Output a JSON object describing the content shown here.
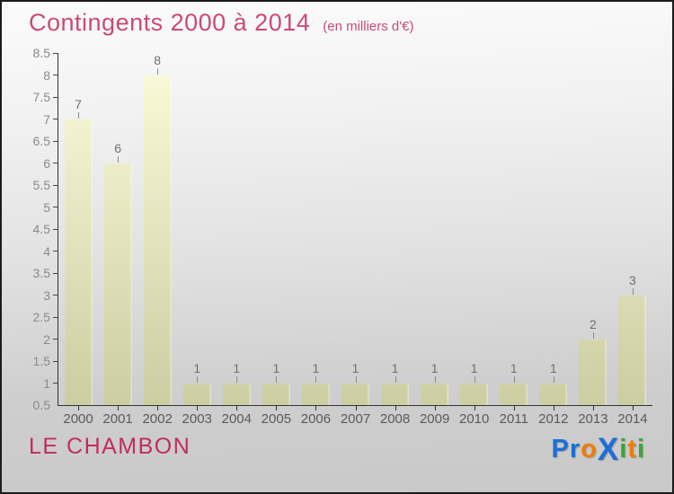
{
  "header": {
    "title": "Contingents 2000 à 2014",
    "subtitle": "(en milliers d'€)"
  },
  "chart_data": {
    "type": "bar",
    "categories": [
      "2000",
      "2001",
      "2002",
      "2003",
      "2004",
      "2005",
      "2006",
      "2007",
      "2008",
      "2009",
      "2010",
      "2011",
      "2012",
      "2013",
      "2014"
    ],
    "values": [
      7,
      6,
      8,
      1,
      1,
      1,
      1,
      1,
      1,
      1,
      1,
      1,
      1,
      2,
      3
    ],
    "title": "Contingents 2000 à 2014",
    "subtitle": "(en milliers d'€)",
    "xlabel": "",
    "ylabel": "",
    "ylim": [
      0.5,
      8.5
    ],
    "ytick_step": 0.5,
    "grid": false,
    "legend": "none",
    "bar_color_top": "#fbfbdb",
    "bar_color_bottom": "#cdcda2",
    "axis_color": "#333333",
    "value_label_color": "#6f6f6f",
    "tick_label_color": "#8a8a8a"
  },
  "footer": {
    "place_name": "LE CHAMBON",
    "logo": {
      "text": "Proxiti",
      "letters": [
        {
          "ch": "P",
          "color": "#1b6fd6",
          "big": false
        },
        {
          "ch": "r",
          "color": "#1b6fd6",
          "big": false
        },
        {
          "ch": "o",
          "color": "#f07d00",
          "big": false
        },
        {
          "ch": "X",
          "color": "#1b6fd6",
          "big": true
        },
        {
          "ch": "i",
          "color": "#3aa635",
          "big": false
        },
        {
          "ch": "t",
          "color": "#f07d00",
          "big": false
        },
        {
          "ch": "i",
          "color": "#3aa635",
          "big": false
        }
      ]
    }
  }
}
